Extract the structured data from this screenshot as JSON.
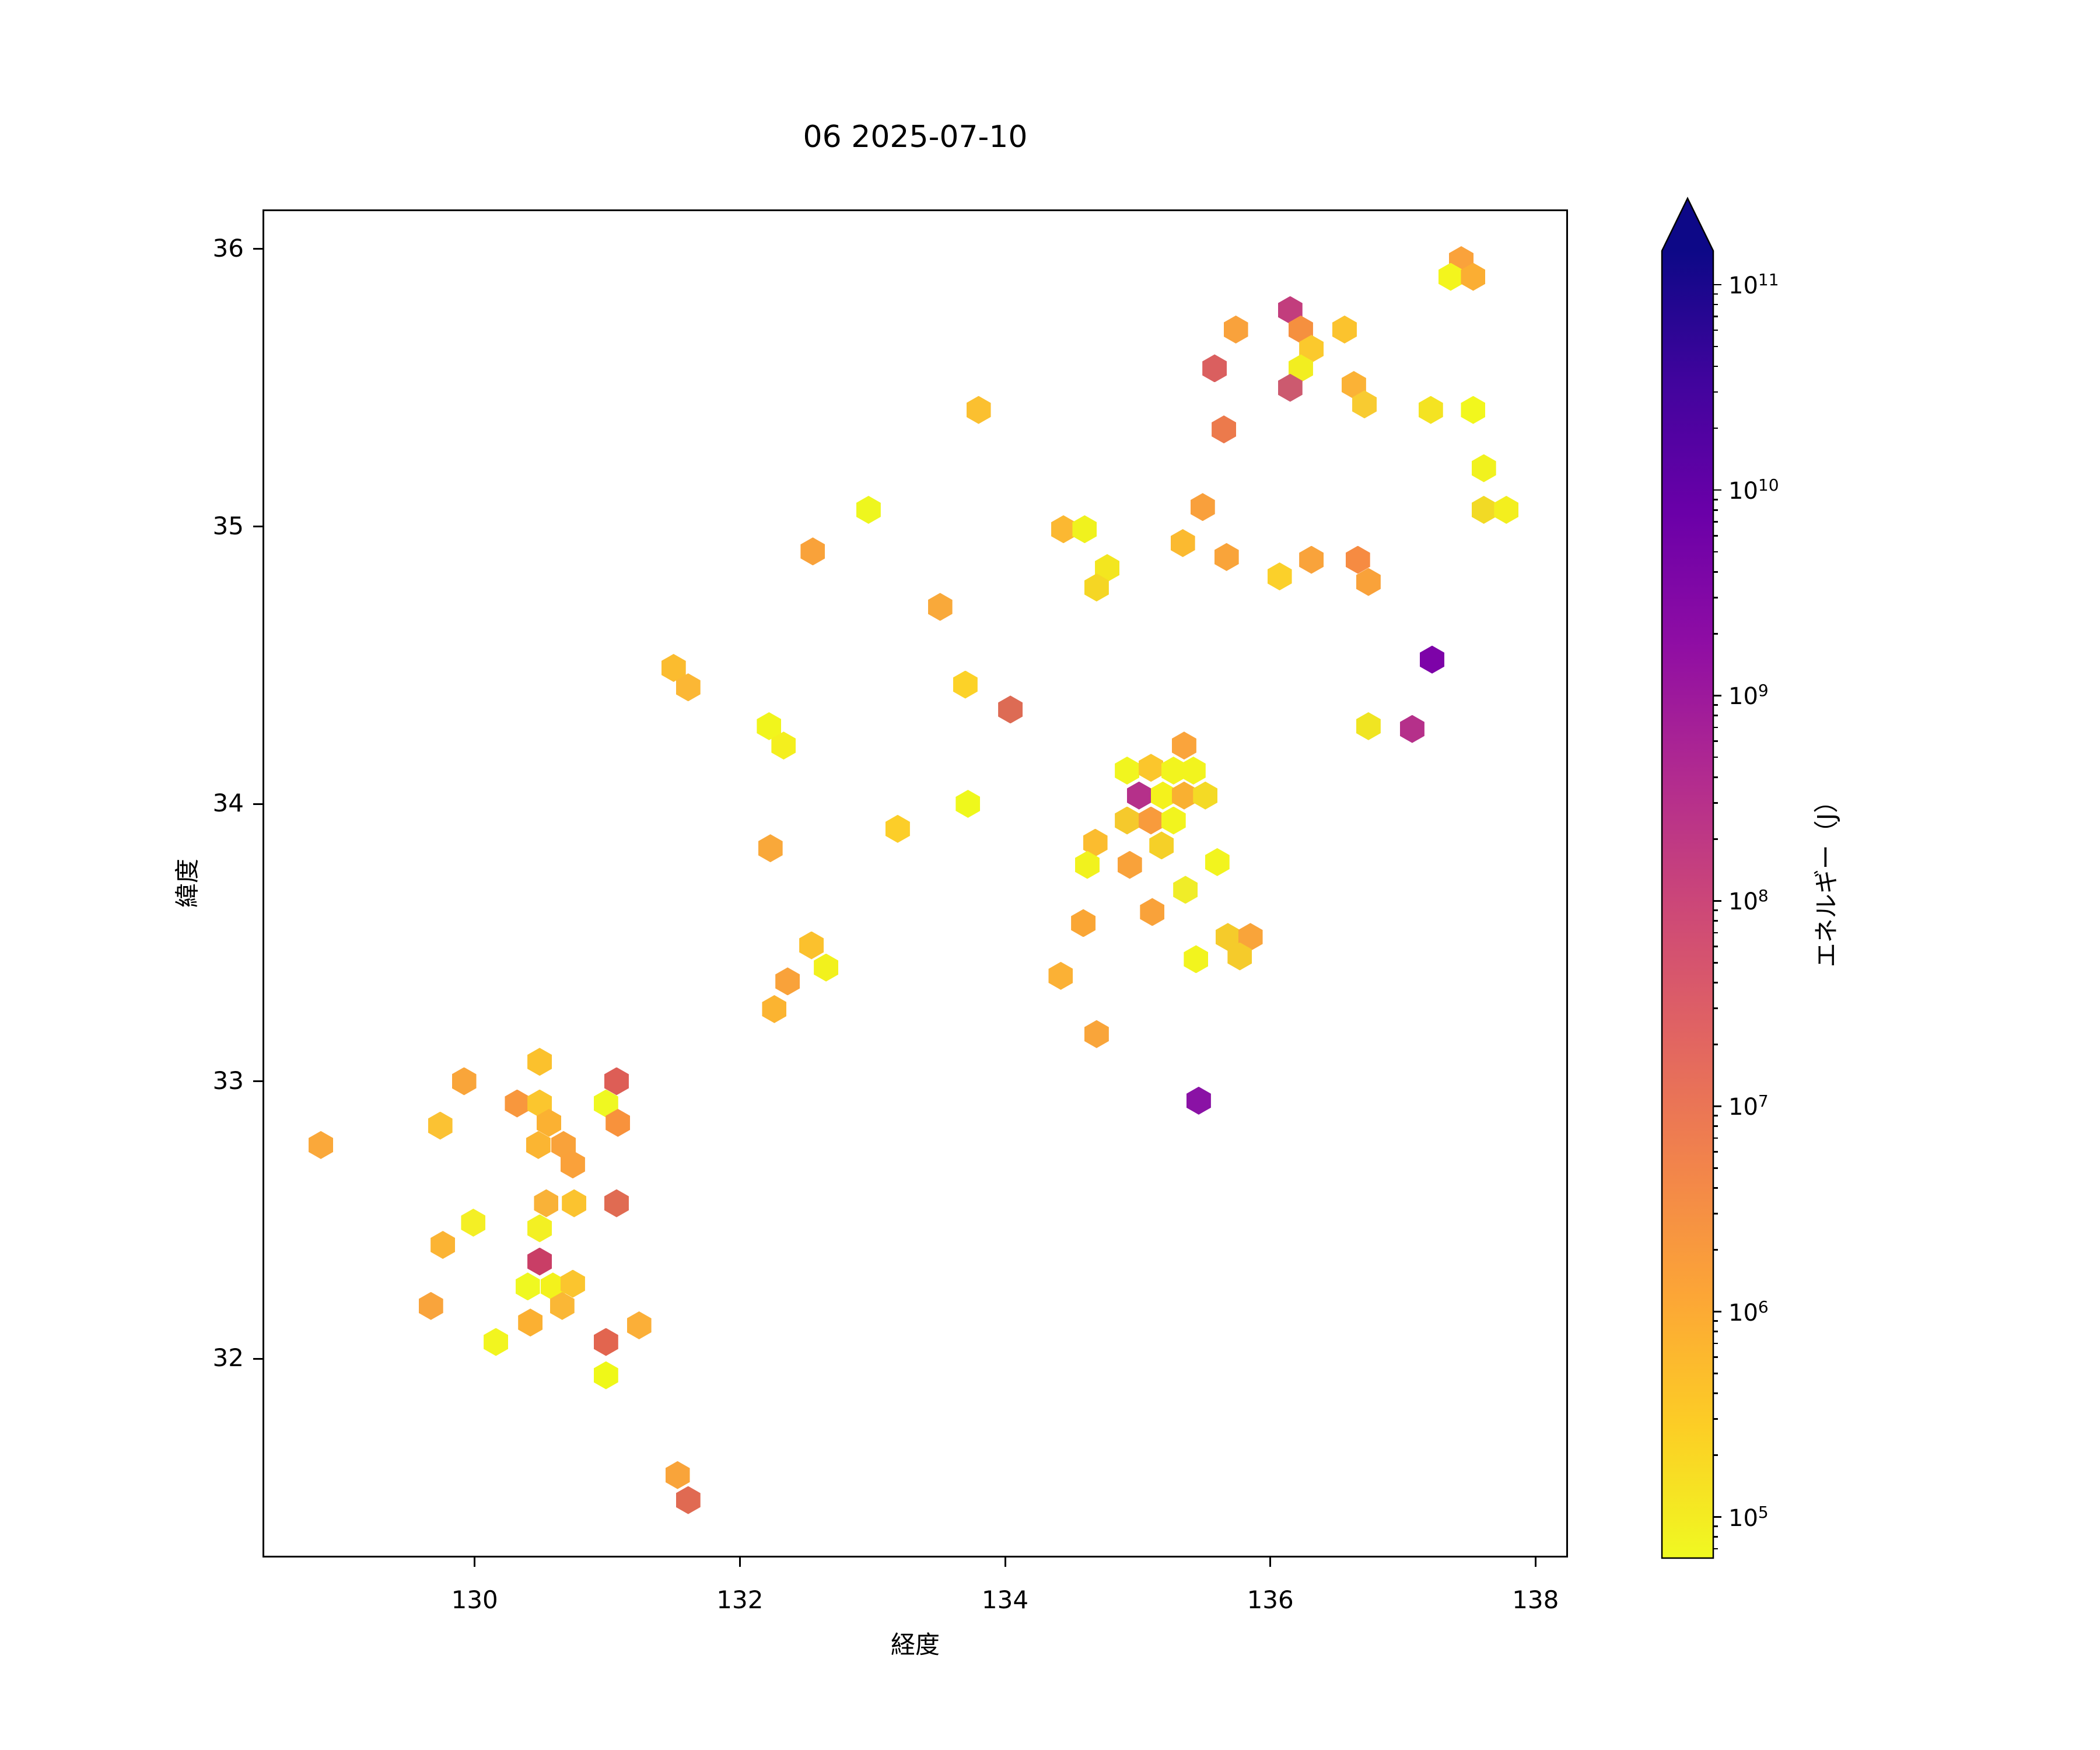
{
  "chart_data": {
    "type": "hexbin",
    "title": "06 2025-07-10",
    "xlabel": "経度",
    "ylabel": "緯度",
    "xlim": [
      128.4,
      138.245
    ],
    "ylim": [
      31.283,
      36.143
    ],
    "xticks": [
      130,
      132,
      134,
      136,
      138
    ],
    "yticks": [
      32,
      33,
      34,
      35,
      36
    ],
    "grid": false,
    "colorbar": {
      "label": "エネルギー（J）",
      "scale": "log",
      "tick_exponents": [
        5,
        6,
        7,
        8,
        9,
        10,
        11
      ],
      "log_min": 4.8,
      "log_max": 11.165,
      "extend": "max",
      "cmap": "plasma_r",
      "gradient_top_to_bottom": [
        "#0d0887",
        "#41049d",
        "#6a00a8",
        "#8f0da4",
        "#b12a90",
        "#cc4778",
        "#e16462",
        "#f2844b",
        "#fca636",
        "#fcce25",
        "#f0f921"
      ]
    },
    "points": [
      {
        "lon": 130.49,
        "lat": 33.07,
        "color": "#fbc12d",
        "log10_energy": 5.6
      },
      {
        "lon": 129.92,
        "lat": 33.0,
        "color": "#f9a53a",
        "log10_energy": 6.2
      },
      {
        "lon": 131.07,
        "lat": 33.0,
        "color": "#dd5e56",
        "log10_energy": 7.4
      },
      {
        "lon": 130.32,
        "lat": 32.92,
        "color": "#f8973d",
        "log10_energy": 6.4
      },
      {
        "lon": 130.49,
        "lat": 32.92,
        "color": "#fbc62e",
        "log10_energy": 5.5
      },
      {
        "lon": 130.99,
        "lat": 32.92,
        "color": "#eff821",
        "log10_energy": 5.0
      },
      {
        "lon": 130.56,
        "lat": 32.85,
        "color": "#fbb132",
        "log10_energy": 5.9
      },
      {
        "lon": 131.08,
        "lat": 32.85,
        "color": "#f8923c",
        "log10_energy": 6.5
      },
      {
        "lon": 129.74,
        "lat": 32.84,
        "color": "#fbc233",
        "log10_energy": 5.6
      },
      {
        "lon": 128.84,
        "lat": 32.77,
        "color": "#faa83a",
        "log10_energy": 6.1
      },
      {
        "lon": 130.48,
        "lat": 32.77,
        "color": "#fbb532",
        "log10_energy": 5.9
      },
      {
        "lon": 130.67,
        "lat": 32.77,
        "color": "#f9a23a",
        "log10_energy": 6.3
      },
      {
        "lon": 130.74,
        "lat": 32.7,
        "color": "#faa13a",
        "log10_energy": 6.3
      },
      {
        "lon": 130.54,
        "lat": 32.56,
        "color": "#f9b238",
        "log10_energy": 5.9
      },
      {
        "lon": 130.75,
        "lat": 32.56,
        "color": "#fbc32f",
        "log10_energy": 5.6
      },
      {
        "lon": 131.07,
        "lat": 32.56,
        "color": "#e06b52",
        "log10_energy": 7.2
      },
      {
        "lon": 129.99,
        "lat": 32.49,
        "color": "#f4ef25",
        "log10_energy": 5.1
      },
      {
        "lon": 130.49,
        "lat": 32.47,
        "color": "#f3f023",
        "log10_energy": 5.1
      },
      {
        "lon": 129.76,
        "lat": 32.41,
        "color": "#fbb434",
        "log10_energy": 5.9
      },
      {
        "lon": 130.49,
        "lat": 32.35,
        "color": "#c93e66",
        "log10_energy": 8.2
      },
      {
        "lon": 130.4,
        "lat": 32.26,
        "color": "#eff821",
        "log10_energy": 5.0
      },
      {
        "lon": 130.59,
        "lat": 32.26,
        "color": "#f3f21c",
        "log10_energy": 5.1
      },
      {
        "lon": 130.74,
        "lat": 32.27,
        "color": "#fbc52e",
        "log10_energy": 5.5
      },
      {
        "lon": 130.66,
        "lat": 32.19,
        "color": "#fab736",
        "log10_energy": 5.8
      },
      {
        "lon": 129.67,
        "lat": 32.19,
        "color": "#f9a43c",
        "log10_energy": 6.2
      },
      {
        "lon": 130.42,
        "lat": 32.13,
        "color": "#fbb032",
        "log10_energy": 5.9
      },
      {
        "lon": 131.24,
        "lat": 32.12,
        "color": "#fbaf38",
        "log10_energy": 5.9
      },
      {
        "lon": 130.16,
        "lat": 32.06,
        "color": "#f2f51f",
        "log10_energy": 5.0
      },
      {
        "lon": 130.99,
        "lat": 32.06,
        "color": "#e2654f",
        "log10_energy": 7.3
      },
      {
        "lon": 130.99,
        "lat": 31.94,
        "color": "#eff818",
        "log10_energy": 5.0
      },
      {
        "lon": 131.53,
        "lat": 31.58,
        "color": "#f9a43a",
        "log10_energy": 6.2
      },
      {
        "lon": 131.61,
        "lat": 31.49,
        "color": "#e06a52",
        "log10_energy": 7.2
      },
      {
        "lon": 132.97,
        "lat": 35.06,
        "color": "#eef61e",
        "log10_energy": 5.0
      },
      {
        "lon": 132.55,
        "lat": 34.91,
        "color": "#f9a23a",
        "log10_energy": 6.3
      },
      {
        "lon": 133.51,
        "lat": 34.71,
        "color": "#f9a93a",
        "log10_energy": 6.1
      },
      {
        "lon": 131.5,
        "lat": 34.49,
        "color": "#fbbc2f",
        "log10_energy": 5.7
      },
      {
        "lon": 131.61,
        "lat": 34.42,
        "color": "#fbb735",
        "log10_energy": 5.8
      },
      {
        "lon": 133.7,
        "lat": 34.43,
        "color": "#fcd228",
        "log10_energy": 5.4
      },
      {
        "lon": 134.04,
        "lat": 34.34,
        "color": "#dd6b54",
        "log10_energy": 7.2
      },
      {
        "lon": 132.22,
        "lat": 34.28,
        "color": "#f1f51c",
        "log10_energy": 5.0
      },
      {
        "lon": 132.33,
        "lat": 34.21,
        "color": "#f4ef1e",
        "log10_energy": 5.1
      },
      {
        "lon": 133.72,
        "lat": 34.0,
        "color": "#eff81c",
        "log10_energy": 5.0
      },
      {
        "lon": 133.19,
        "lat": 33.91,
        "color": "#fcce29",
        "log10_energy": 5.5
      },
      {
        "lon": 132.23,
        "lat": 33.84,
        "color": "#f9a83a",
        "log10_energy": 6.1
      },
      {
        "lon": 132.54,
        "lat": 33.49,
        "color": "#fbc12d",
        "log10_energy": 5.6
      },
      {
        "lon": 132.65,
        "lat": 33.41,
        "color": "#f2f11d",
        "log10_energy": 5.1
      },
      {
        "lon": 132.36,
        "lat": 33.36,
        "color": "#f9a23a",
        "log10_energy": 6.3
      },
      {
        "lon": 132.26,
        "lat": 33.26,
        "color": "#fbb431",
        "log10_energy": 5.9
      },
      {
        "lon": 134.59,
        "lat": 33.57,
        "color": "#faa635",
        "log10_energy": 6.2
      },
      {
        "lon": 134.42,
        "lat": 33.38,
        "color": "#fbb135",
        "log10_energy": 5.9
      },
      {
        "lon": 133.8,
        "lat": 35.42,
        "color": "#fbc030",
        "log10_energy": 5.6
      },
      {
        "lon": 134.44,
        "lat": 34.99,
        "color": "#fbb832",
        "log10_energy": 5.8
      },
      {
        "lon": 134.6,
        "lat": 34.99,
        "color": "#f0f21e",
        "log10_energy": 5.1
      },
      {
        "lon": 134.77,
        "lat": 34.85,
        "color": "#f3e61f",
        "log10_energy": 5.2
      },
      {
        "lon": 134.69,
        "lat": 34.78,
        "color": "#f5d624",
        "log10_energy": 5.4
      },
      {
        "lon": 135.35,
        "lat": 34.21,
        "color": "#faa43c",
        "log10_energy": 6.2
      },
      {
        "lon": 134.92,
        "lat": 34.12,
        "color": "#f1f51f",
        "log10_energy": 5.0
      },
      {
        "lon": 135.1,
        "lat": 34.13,
        "color": "#fbc62c",
        "log10_energy": 5.5
      },
      {
        "lon": 135.27,
        "lat": 34.12,
        "color": "#f2f41e",
        "log10_energy": 5.1
      },
      {
        "lon": 135.42,
        "lat": 34.12,
        "color": "#f2f41e",
        "log10_energy": 5.1
      },
      {
        "lon": 135.01,
        "lat": 34.03,
        "color": "#b5308a",
        "log10_energy": 8.7
      },
      {
        "lon": 135.19,
        "lat": 34.03,
        "color": "#f4f21c",
        "log10_energy": 5.1
      },
      {
        "lon": 135.35,
        "lat": 34.03,
        "color": "#f9b031",
        "log10_energy": 5.9
      },
      {
        "lon": 135.51,
        "lat": 34.03,
        "color": "#f4da25",
        "log10_energy": 5.4
      },
      {
        "lon": 134.92,
        "lat": 33.94,
        "color": "#f5c92c",
        "log10_energy": 5.5
      },
      {
        "lon": 135.1,
        "lat": 33.94,
        "color": "#f89b3c",
        "log10_energy": 6.4
      },
      {
        "lon": 135.27,
        "lat": 33.94,
        "color": "#f2f41e",
        "log10_energy": 5.1
      },
      {
        "lon": 134.68,
        "lat": 33.86,
        "color": "#fbbc2f",
        "log10_energy": 5.7
      },
      {
        "lon": 135.18,
        "lat": 33.85,
        "color": "#f5d028",
        "log10_energy": 5.4
      },
      {
        "lon": 134.62,
        "lat": 33.78,
        "color": "#f1f21e",
        "log10_energy": 5.1
      },
      {
        "lon": 134.94,
        "lat": 33.78,
        "color": "#f9a23a",
        "log10_energy": 6.3
      },
      {
        "lon": 135.6,
        "lat": 33.79,
        "color": "#f2f41e",
        "log10_energy": 5.1
      },
      {
        "lon": 135.36,
        "lat": 33.69,
        "color": "#f0ed28",
        "log10_energy": 5.2
      },
      {
        "lon": 135.11,
        "lat": 33.61,
        "color": "#f9a23a",
        "log10_energy": 6.3
      },
      {
        "lon": 135.68,
        "lat": 33.52,
        "color": "#f5cb2b",
        "log10_energy": 5.5
      },
      {
        "lon": 135.85,
        "lat": 33.52,
        "color": "#f9a43a",
        "log10_energy": 6.2
      },
      {
        "lon": 135.77,
        "lat": 33.45,
        "color": "#f5cb2b",
        "log10_energy": 5.5
      },
      {
        "lon": 135.44,
        "lat": 33.44,
        "color": "#f2f41e",
        "log10_energy": 5.1
      },
      {
        "lon": 134.69,
        "lat": 33.17,
        "color": "#f9a53a",
        "log10_energy": 6.2
      },
      {
        "lon": 135.46,
        "lat": 32.93,
        "color": "#8a12a5",
        "log10_energy": 9.4
      },
      {
        "lon": 136.15,
        "lat": 35.78,
        "color": "#c23d7d",
        "log10_energy": 8.4
      },
      {
        "lon": 136.23,
        "lat": 35.71,
        "color": "#f5903f",
        "log10_energy": 6.6
      },
      {
        "lon": 135.74,
        "lat": 35.71,
        "color": "#f9a23c",
        "log10_energy": 6.3
      },
      {
        "lon": 136.56,
        "lat": 35.71,
        "color": "#fbc32e",
        "log10_energy": 5.6
      },
      {
        "lon": 136.31,
        "lat": 35.64,
        "color": "#fbc92d",
        "log10_energy": 5.5
      },
      {
        "lon": 135.58,
        "lat": 35.57,
        "color": "#da5f5f",
        "log10_energy": 7.5
      },
      {
        "lon": 136.23,
        "lat": 35.57,
        "color": "#f2ee20",
        "log10_energy": 5.1
      },
      {
        "lon": 136.15,
        "lat": 35.5,
        "color": "#cc5a6f",
        "log10_energy": 7.9
      },
      {
        "lon": 136.63,
        "lat": 35.51,
        "color": "#fbb236",
        "log10_energy": 5.9
      },
      {
        "lon": 136.71,
        "lat": 35.44,
        "color": "#f8cb31",
        "log10_energy": 5.5
      },
      {
        "lon": 135.65,
        "lat": 35.35,
        "color": "#ec7a4c",
        "log10_energy": 7.0
      },
      {
        "lon": 135.49,
        "lat": 35.07,
        "color": "#f9a03c",
        "log10_energy": 6.3
      },
      {
        "lon": 135.34,
        "lat": 34.94,
        "color": "#fbba30",
        "log10_energy": 5.8
      },
      {
        "lon": 135.67,
        "lat": 34.89,
        "color": "#f9a43a",
        "log10_energy": 6.2
      },
      {
        "lon": 136.31,
        "lat": 34.88,
        "color": "#f9a33b",
        "log10_energy": 6.3
      },
      {
        "lon": 136.66,
        "lat": 34.88,
        "color": "#f68b42",
        "log10_energy": 6.7
      },
      {
        "lon": 136.74,
        "lat": 34.8,
        "color": "#f9a23a",
        "log10_energy": 6.3
      },
      {
        "lon": 136.07,
        "lat": 34.82,
        "color": "#fbd02a",
        "log10_energy": 5.4
      },
      {
        "lon": 137.22,
        "lat": 34.52,
        "color": "#7d03a8",
        "log10_energy": 9.8
      },
      {
        "lon": 137.07,
        "lat": 34.27,
        "color": "#b5308a",
        "log10_energy": 8.7
      },
      {
        "lon": 136.74,
        "lat": 34.28,
        "color": "#f0e522",
        "log10_energy": 5.2
      },
      {
        "lon": 137.44,
        "lat": 35.96,
        "color": "#faa23b",
        "log10_energy": 6.3
      },
      {
        "lon": 137.36,
        "lat": 35.9,
        "color": "#f3f51d",
        "log10_energy": 5.0
      },
      {
        "lon": 137.53,
        "lat": 35.9,
        "color": "#fbae33",
        "log10_energy": 5.9
      },
      {
        "lon": 137.21,
        "lat": 35.42,
        "color": "#f4e322",
        "log10_energy": 5.2
      },
      {
        "lon": 137.53,
        "lat": 35.42,
        "color": "#f2f71d",
        "log10_energy": 5.0
      },
      {
        "lon": 137.61,
        "lat": 35.21,
        "color": "#f1f21e",
        "log10_energy": 5.1
      },
      {
        "lon": 137.61,
        "lat": 35.06,
        "color": "#f2da25",
        "log10_energy": 5.3
      },
      {
        "lon": 137.78,
        "lat": 35.06,
        "color": "#f3ef1e",
        "log10_energy": 5.1
      }
    ]
  }
}
